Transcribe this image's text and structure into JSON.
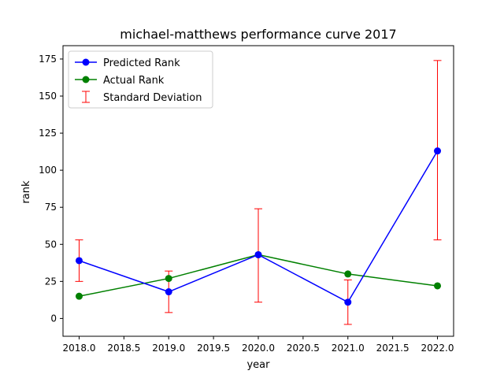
{
  "chart_data": {
    "type": "line",
    "title": "michael-matthews performance curve 2017",
    "xlabel": "year",
    "ylabel": "rank",
    "xlim": [
      2017.82,
      2022.18
    ],
    "ylim": [
      -12,
      184
    ],
    "xticks": [
      2018.0,
      2018.5,
      2019.0,
      2019.5,
      2020.0,
      2020.5,
      2021.0,
      2021.5,
      2022.0
    ],
    "xtick_labels": [
      "2018.0",
      "2018.5",
      "2019.0",
      "2019.5",
      "2020.0",
      "2020.5",
      "2021.0",
      "2021.5",
      "2022.0"
    ],
    "yticks": [
      0,
      25,
      50,
      75,
      100,
      125,
      150,
      175
    ],
    "ytick_labels": [
      "0",
      "25",
      "50",
      "75",
      "100",
      "125",
      "150",
      "175"
    ],
    "grid": false,
    "legend_position": "top-left",
    "x": [
      2018,
      2019,
      2020,
      2021,
      2022
    ],
    "series": [
      {
        "name": "Predicted Rank",
        "color": "#0000ff",
        "values": [
          39,
          18,
          43,
          11,
          113
        ],
        "error_lower": [
          25,
          4,
          11,
          -4,
          53
        ],
        "error_upper": [
          53,
          32,
          74,
          26,
          174
        ]
      },
      {
        "name": "Actual Rank",
        "color": "#008000",
        "values": [
          15,
          27,
          43,
          30,
          22
        ]
      }
    ],
    "errorbar_legend": "Standard Deviation",
    "errorbar_color": "#ff0000"
  }
}
